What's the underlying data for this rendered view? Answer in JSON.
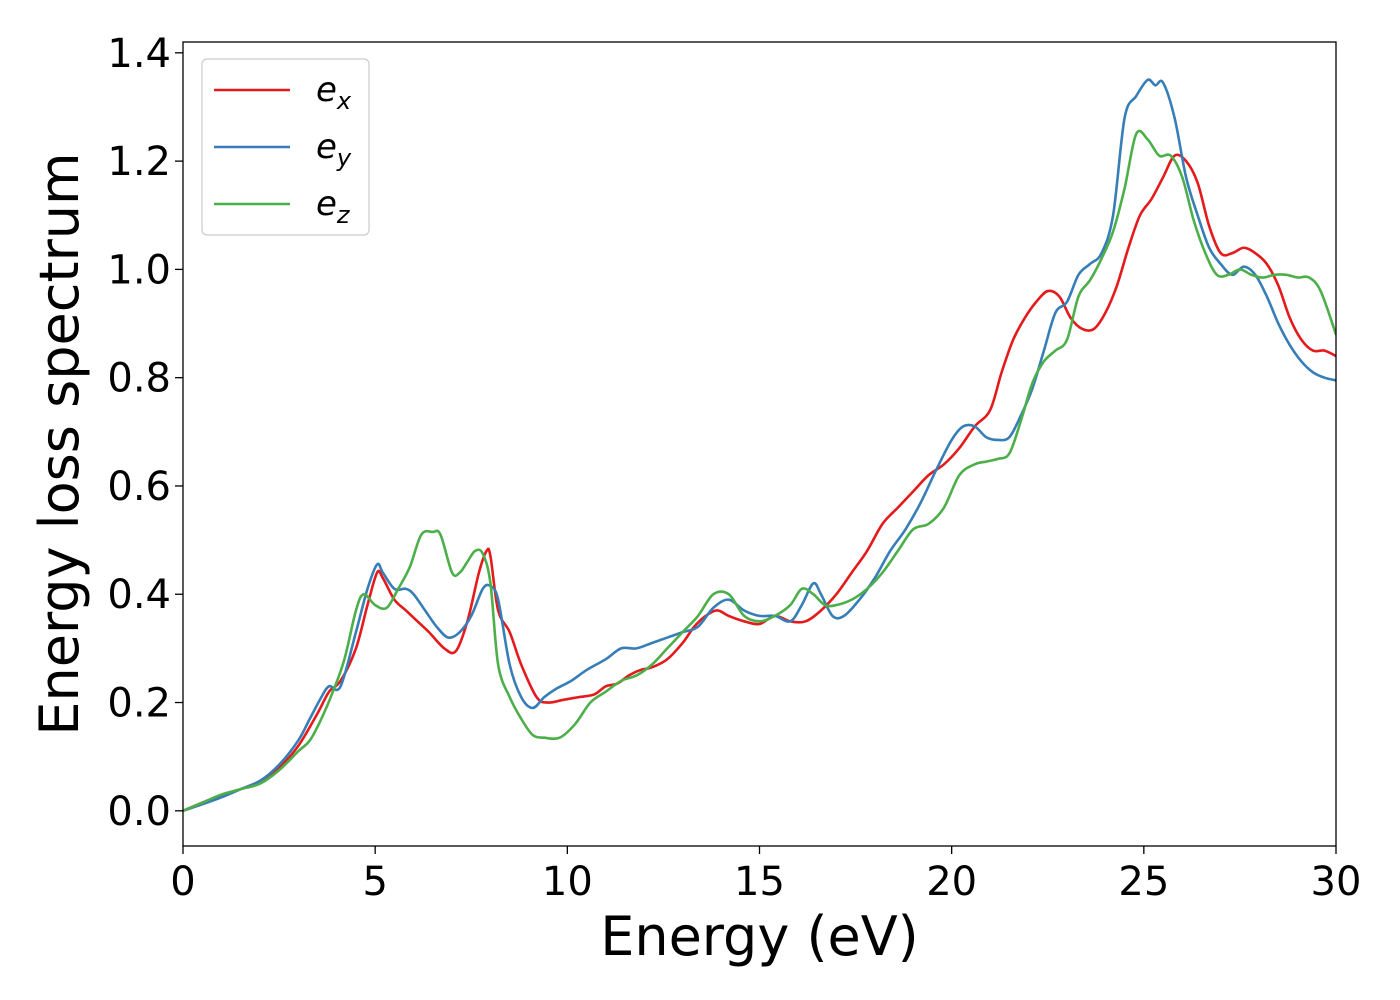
{
  "chart_data": {
    "type": "line",
    "title": "",
    "xlabel": "Energy (eV)",
    "ylabel": "Energy loss spectrum",
    "xlim": [
      0,
      30
    ],
    "ylim": [
      -0.065,
      1.42
    ],
    "xticks": [
      0,
      5,
      10,
      15,
      20,
      25,
      30
    ],
    "xtick_labels": [
      "0",
      "5",
      "10",
      "15",
      "20",
      "25",
      "30"
    ],
    "yticks": [
      0.0,
      0.2,
      0.4,
      0.6,
      0.8,
      1.0,
      1.2,
      1.4
    ],
    "ytick_labels": [
      "0.0",
      "0.2",
      "0.4",
      "0.6",
      "0.8",
      "1.0",
      "1.2",
      "1.4"
    ],
    "grid": false,
    "legend_position": "top-left",
    "series": [
      {
        "name": "e_x",
        "label_base": "e",
        "label_sub": "x",
        "color": "#e41a1c",
        "x": [
          0,
          0.5,
          1,
          1.5,
          2,
          2.5,
          3,
          3.5,
          3.8,
          4.1,
          4.5,
          4.8,
          5.05,
          5.2,
          5.5,
          5.8,
          6.1,
          6.4,
          6.8,
          7.1,
          7.4,
          7.7,
          7.9,
          8.0,
          8.2,
          8.5,
          8.8,
          9.2,
          9.5,
          9.9,
          10.3,
          10.7,
          11.0,
          11.3,
          11.6,
          11.9,
          12.2,
          12.6,
          13.0,
          13.3,
          13.6,
          13.9,
          14.2,
          14.6,
          15.0,
          15.4,
          15.8,
          16.2,
          16.6,
          17.0,
          17.4,
          17.8,
          18.2,
          18.6,
          19.0,
          19.4,
          19.8,
          20.2,
          20.6,
          21.0,
          21.3,
          21.6,
          21.9,
          22.2,
          22.5,
          22.8,
          23.1,
          23.4,
          23.7,
          24.0,
          24.3,
          24.6,
          24.9,
          25.2,
          25.5,
          25.8,
          26.1,
          26.4,
          26.7,
          27.0,
          27.3,
          27.6,
          27.9,
          28.2,
          28.5,
          28.8,
          29.1,
          29.4,
          29.7,
          30.0
        ],
        "y": [
          0.0,
          0.015,
          0.028,
          0.04,
          0.055,
          0.08,
          0.12,
          0.18,
          0.22,
          0.24,
          0.3,
          0.38,
          0.44,
          0.43,
          0.39,
          0.37,
          0.35,
          0.33,
          0.3,
          0.295,
          0.35,
          0.44,
          0.48,
          0.47,
          0.37,
          0.33,
          0.27,
          0.21,
          0.2,
          0.205,
          0.21,
          0.215,
          0.23,
          0.235,
          0.25,
          0.26,
          0.265,
          0.28,
          0.31,
          0.34,
          0.36,
          0.37,
          0.36,
          0.35,
          0.345,
          0.36,
          0.35,
          0.35,
          0.37,
          0.4,
          0.44,
          0.48,
          0.53,
          0.56,
          0.59,
          0.62,
          0.64,
          0.67,
          0.71,
          0.74,
          0.81,
          0.87,
          0.91,
          0.94,
          0.96,
          0.95,
          0.91,
          0.89,
          0.89,
          0.92,
          0.97,
          1.04,
          1.1,
          1.13,
          1.17,
          1.21,
          1.2,
          1.16,
          1.08,
          1.03,
          1.03,
          1.04,
          1.03,
          1.01,
          0.97,
          0.91,
          0.87,
          0.85,
          0.85,
          0.84
        ]
      },
      {
        "name": "e_y",
        "label_base": "e",
        "label_sub": "y",
        "color": "#377eb8",
        "x": [
          0,
          0.5,
          1,
          1.5,
          2,
          2.5,
          3,
          3.3,
          3.6,
          3.8,
          4.1,
          4.5,
          4.8,
          5.05,
          5.2,
          5.5,
          5.8,
          6.0,
          6.3,
          6.6,
          6.9,
          7.2,
          7.5,
          7.8,
          8.0,
          8.2,
          8.5,
          8.8,
          9.1,
          9.4,
          9.7,
          10.1,
          10.5,
          11.0,
          11.4,
          11.8,
          12.2,
          12.6,
          13.0,
          13.4,
          13.8,
          14.2,
          14.6,
          15.0,
          15.4,
          15.8,
          16.1,
          16.4,
          16.6,
          16.9,
          17.2,
          17.6,
          18.0,
          18.4,
          18.8,
          19.2,
          19.6,
          20.0,
          20.3,
          20.6,
          20.9,
          21.2,
          21.5,
          21.8,
          22.1,
          22.4,
          22.7,
          23.0,
          23.3,
          23.6,
          23.9,
          24.2,
          24.5,
          24.8,
          25.1,
          25.3,
          25.5,
          25.8,
          26.1,
          26.4,
          26.7,
          27.0,
          27.3,
          27.6,
          27.9,
          28.2,
          28.5,
          28.8,
          29.1,
          29.4,
          29.7,
          30.0
        ],
        "y": [
          0.0,
          0.012,
          0.025,
          0.04,
          0.055,
          0.085,
          0.13,
          0.17,
          0.21,
          0.23,
          0.23,
          0.33,
          0.41,
          0.455,
          0.44,
          0.41,
          0.41,
          0.4,
          0.37,
          0.34,
          0.32,
          0.33,
          0.36,
          0.41,
          0.415,
          0.39,
          0.27,
          0.21,
          0.19,
          0.21,
          0.225,
          0.24,
          0.26,
          0.28,
          0.3,
          0.3,
          0.31,
          0.32,
          0.33,
          0.34,
          0.375,
          0.39,
          0.37,
          0.36,
          0.36,
          0.35,
          0.38,
          0.42,
          0.4,
          0.36,
          0.36,
          0.39,
          0.43,
          0.48,
          0.52,
          0.57,
          0.63,
          0.685,
          0.71,
          0.71,
          0.69,
          0.685,
          0.69,
          0.73,
          0.78,
          0.85,
          0.92,
          0.94,
          0.99,
          1.01,
          1.03,
          1.1,
          1.28,
          1.32,
          1.35,
          1.34,
          1.345,
          1.28,
          1.17,
          1.1,
          1.04,
          1.01,
          0.99,
          1.005,
          0.99,
          0.95,
          0.9,
          0.86,
          0.83,
          0.81,
          0.8,
          0.795
        ]
      },
      {
        "name": "e_z",
        "label_base": "e",
        "label_sub": "z",
        "color": "#4daf4a",
        "x": [
          0,
          0.5,
          1,
          1.5,
          2,
          2.5,
          3,
          3.3,
          3.6,
          3.9,
          4.2,
          4.5,
          4.7,
          5.0,
          5.3,
          5.6,
          5.9,
          6.2,
          6.5,
          6.7,
          7.0,
          7.2,
          7.4,
          7.6,
          7.8,
          8.0,
          8.2,
          8.5,
          8.8,
          9.1,
          9.4,
          9.8,
          10.2,
          10.6,
          11.0,
          11.4,
          11.8,
          12.2,
          12.6,
          13.0,
          13.4,
          13.8,
          14.2,
          14.6,
          15.0,
          15.4,
          15.8,
          16.1,
          16.4,
          16.7,
          17.0,
          17.4,
          17.8,
          18.2,
          18.6,
          19.0,
          19.4,
          19.8,
          20.2,
          20.6,
          20.9,
          21.2,
          21.5,
          21.8,
          22.1,
          22.4,
          22.7,
          23.0,
          23.3,
          23.6,
          23.9,
          24.2,
          24.5,
          24.8,
          25.1,
          25.4,
          25.7,
          26.0,
          26.3,
          26.6,
          26.9,
          27.2,
          27.5,
          27.8,
          28.1,
          28.4,
          28.7,
          29.0,
          29.3,
          29.6,
          30.0
        ],
        "y": [
          0.0,
          0.015,
          0.03,
          0.04,
          0.05,
          0.075,
          0.11,
          0.13,
          0.17,
          0.22,
          0.28,
          0.37,
          0.4,
          0.38,
          0.375,
          0.41,
          0.45,
          0.51,
          0.515,
          0.51,
          0.44,
          0.44,
          0.46,
          0.48,
          0.475,
          0.42,
          0.27,
          0.21,
          0.17,
          0.14,
          0.135,
          0.135,
          0.16,
          0.2,
          0.22,
          0.24,
          0.25,
          0.27,
          0.3,
          0.33,
          0.36,
          0.4,
          0.4,
          0.36,
          0.35,
          0.36,
          0.38,
          0.41,
          0.4,
          0.38,
          0.38,
          0.39,
          0.41,
          0.44,
          0.48,
          0.52,
          0.53,
          0.56,
          0.62,
          0.64,
          0.645,
          0.65,
          0.66,
          0.72,
          0.79,
          0.83,
          0.85,
          0.87,
          0.95,
          0.98,
          1.02,
          1.07,
          1.15,
          1.25,
          1.24,
          1.21,
          1.21,
          1.17,
          1.09,
          1.03,
          0.99,
          0.99,
          1.0,
          0.99,
          0.985,
          0.99,
          0.99,
          0.985,
          0.985,
          0.96,
          0.88
        ]
      }
    ]
  }
}
